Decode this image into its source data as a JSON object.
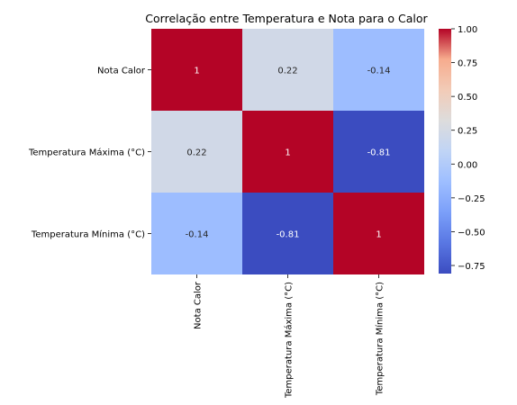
{
  "chart_data": {
    "type": "heatmap",
    "title": "Correlação entre Temperatura e Nota para o Calor",
    "rows": [
      "Nota Calor",
      "Temperatura Máxima (°C)",
      "Temperatura Mínima (°C)"
    ],
    "columns": [
      "Nota Calor",
      "Temperatura Máxima (°C)",
      "Temperatura Mínima (°C)"
    ],
    "values": [
      [
        1,
        0.22,
        -0.14
      ],
      [
        0.22,
        1,
        -0.81
      ],
      [
        -0.14,
        -0.81,
        1
      ]
    ],
    "value_labels": [
      [
        "1",
        "0.22",
        "-0.14"
      ],
      [
        "0.22",
        "1",
        "-0.81"
      ],
      [
        "-0.14",
        "-0.81",
        "1"
      ]
    ],
    "colormap": "coolwarm",
    "colorbar": {
      "range": [
        -0.81,
        1.0
      ],
      "ticks": [
        1.0,
        0.75,
        0.5,
        0.25,
        0.0,
        -0.25,
        -0.5,
        -0.75
      ],
      "tick_labels": [
        "1.00",
        "0.75",
        "0.50",
        "0.25",
        "0.00",
        "−0.25",
        "−0.50",
        "−0.75"
      ]
    }
  }
}
